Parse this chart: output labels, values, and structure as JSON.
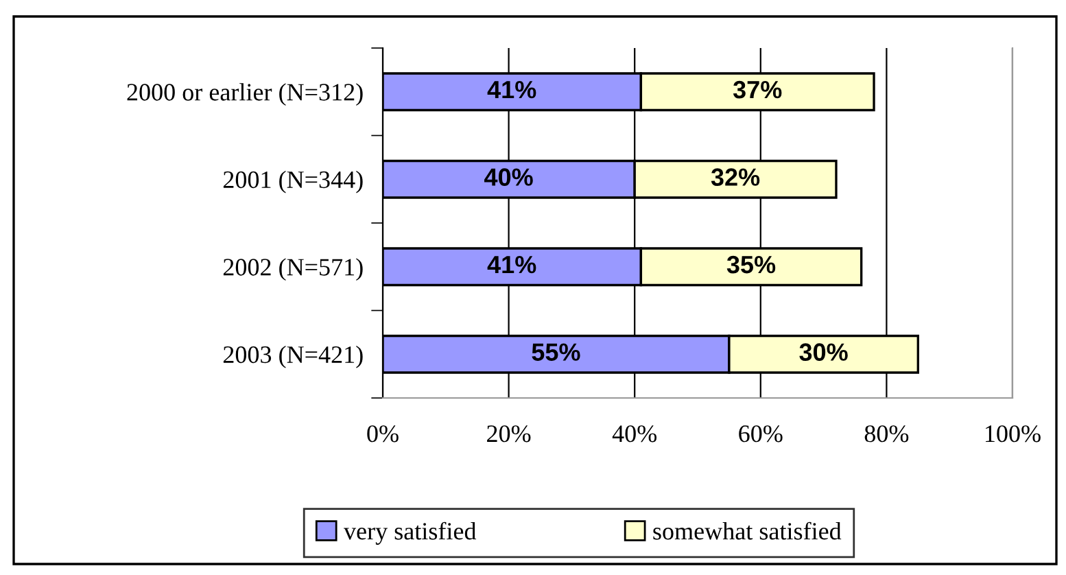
{
  "chart_data": {
    "type": "bar",
    "orientation": "horizontal",
    "stacked": true,
    "categories": [
      "2000 or earlier (N=312)",
      "2001 (N=344)",
      "2002 (N=571)",
      "2003 (N=421)"
    ],
    "series": [
      {
        "name": "very satisfied",
        "color": "#9999ff",
        "values": [
          41,
          40,
          41,
          55
        ],
        "value_labels": [
          "41%",
          "40%",
          "41%",
          "55%"
        ]
      },
      {
        "name": "somewhat satisfied",
        "color": "#ffffcc",
        "values": [
          37,
          32,
          35,
          30
        ],
        "value_labels": [
          "37%",
          "32%",
          "35%",
          "30%"
        ]
      }
    ],
    "xlim": [
      0,
      100
    ],
    "xticks": [
      {
        "value": 0,
        "label": "0%"
      },
      {
        "value": 20,
        "label": "20%"
      },
      {
        "value": 40,
        "label": "40%"
      },
      {
        "value": 60,
        "label": "60%"
      },
      {
        "value": 80,
        "label": "80%"
      },
      {
        "value": 100,
        "label": "100%"
      }
    ],
    "grid": "x",
    "legend": "bottom"
  }
}
